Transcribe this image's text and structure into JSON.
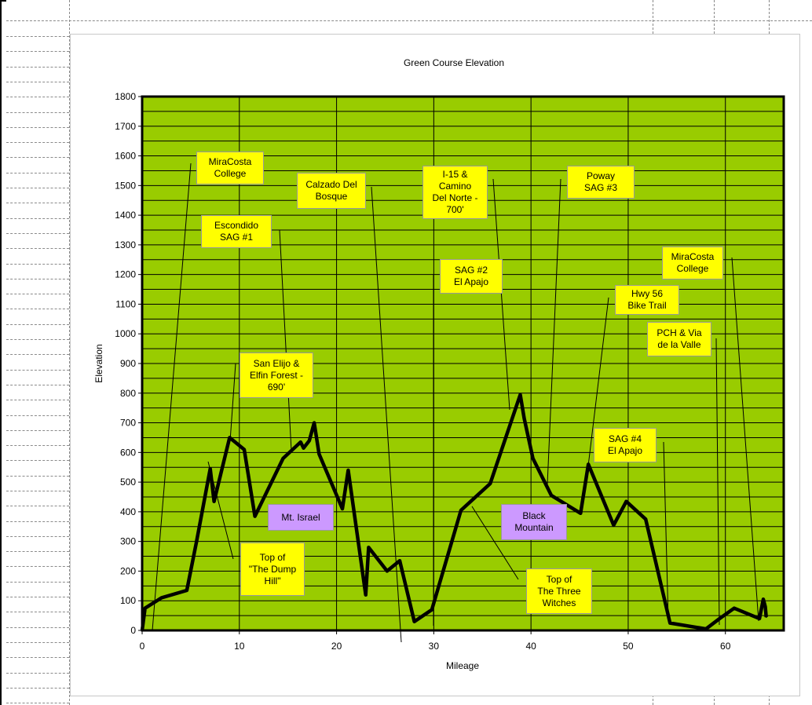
{
  "chart_data": {
    "type": "line",
    "title": "Green Course Elevation",
    "xlabel": "Mileage",
    "ylabel": "Elevation",
    "xlim": [
      0,
      66
    ],
    "ylim": [
      0,
      1800
    ],
    "x_ticks": [
      "0",
      "10",
      "20",
      "30",
      "40",
      "50",
      "60"
    ],
    "y_ticks": [
      "0",
      "100",
      "200",
      "300",
      "400",
      "500",
      "600",
      "700",
      "800",
      "900",
      "1000",
      "1100",
      "1200",
      "1300",
      "1400",
      "1500",
      "1600",
      "1700",
      "1800"
    ],
    "plot_background": "#99cc00",
    "line_color": "#000000",
    "grid": true,
    "series": [
      {
        "x": [
          0,
          0.3,
          2,
          4.6,
          5.6,
          7,
          7.4,
          9,
          10.5,
          11.6,
          14.5,
          16.3,
          16.6,
          17.2,
          17.7,
          18.2,
          20.6,
          21.2,
          23,
          23.3,
          25.2,
          26.5,
          28,
          29.8,
          32.8,
          35.8,
          38.9,
          39.3,
          40.2,
          42.1,
          45.1,
          45.9,
          48.5,
          49.8,
          51.8,
          54.3,
          58,
          59.4,
          60.9,
          63.5,
          63.9,
          64.1,
          64.2
        ],
        "y": [
          0,
          75,
          110,
          135,
          300,
          545,
          435,
          650,
          610,
          385,
          580,
          635,
          615,
          640,
          700,
          595,
          410,
          540,
          120,
          280,
          200,
          235,
          30,
          70,
          405,
          495,
          795,
          715,
          580,
          455,
          395,
          560,
          355,
          435,
          375,
          25,
          5,
          40,
          75,
          40,
          105,
          80,
          45
        ]
      }
    ]
  },
  "callouts": [
    {
      "id": "miracosta-start",
      "text": "MiraCosta\nCollege"
    },
    {
      "id": "calzado",
      "text": "Calzado Del\nBosque"
    },
    {
      "id": "i15",
      "text": "I-15 &\nCamino\nDel Norte -\n700'"
    },
    {
      "id": "poway",
      "text": "Poway\nSAG #3"
    },
    {
      "id": "escondido",
      "text": "Escondido\nSAG #1"
    },
    {
      "id": "sag2",
      "text": "SAG #2\nEl Apajo"
    },
    {
      "id": "miracosta-end",
      "text": "MiraCosta\nCollege"
    },
    {
      "id": "hwy56",
      "text": "Hwy 56\nBike Trail"
    },
    {
      "id": "pch",
      "text": "PCH & Via\nde la Valle"
    },
    {
      "id": "san-elijo",
      "text": "San Elijo &\nElfin Forest -\n690'"
    },
    {
      "id": "sag4",
      "text": "SAG #4\nEl Apajo"
    },
    {
      "id": "mt-israel",
      "text": "Mt. Israel"
    },
    {
      "id": "black-mountain",
      "text": "Black\nMountain"
    },
    {
      "id": "dump-hill",
      "text": "Top of\n\"The Dump\nHill\""
    },
    {
      "id": "three-witches",
      "text": "Top of\nThe Three\nWitches"
    }
  ]
}
